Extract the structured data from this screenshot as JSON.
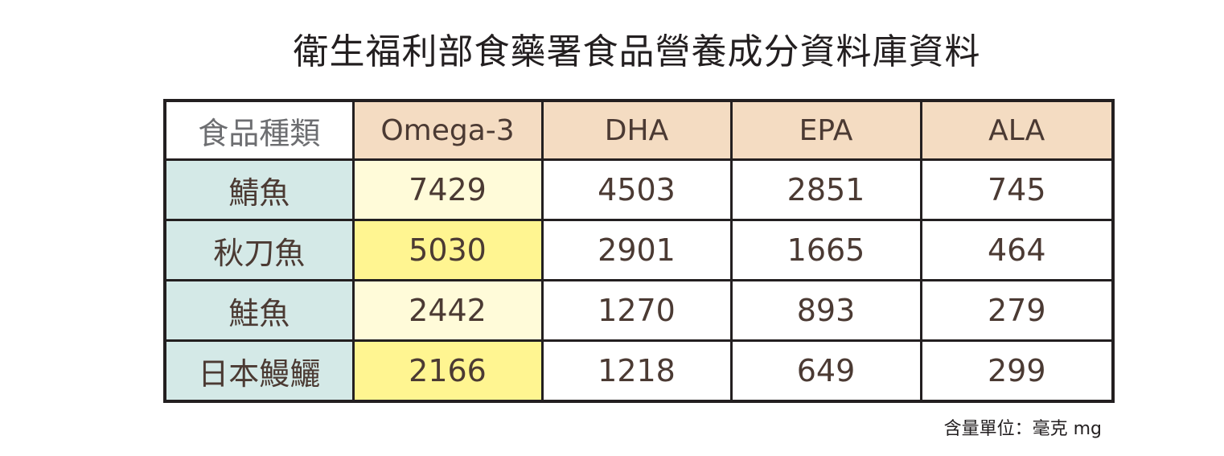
{
  "title": "衛生福利部食藥署食品營養成分資料庫資料",
  "table": {
    "corner_label": "食品種類",
    "columns": [
      "Omega-3",
      "DHA",
      "EPA",
      "ALA"
    ],
    "rows": [
      {
        "food": "鯖魚",
        "values": [
          "7429",
          "4503",
          "2851",
          "745"
        ],
        "highlight": false
      },
      {
        "food": "秋刀魚",
        "values": [
          "5030",
          "2901",
          "1665",
          "464"
        ],
        "highlight": true
      },
      {
        "food": "鮭魚",
        "values": [
          "2442",
          "1270",
          "893",
          "279"
        ],
        "highlight": false
      },
      {
        "food": "日本鰻鱺",
        "values": [
          "2166",
          "1218",
          "649",
          "299"
        ],
        "highlight": true
      }
    ]
  },
  "unit_note": "含量單位：毫克 mg",
  "colors": {
    "header_bg": "#f4dcc2",
    "food_col_bg": "#d4e9e7",
    "omega_light_bg": "#fffbd9",
    "omega_highlight_bg": "#fff591",
    "border": "#231f20",
    "text": "#4b3a33"
  }
}
